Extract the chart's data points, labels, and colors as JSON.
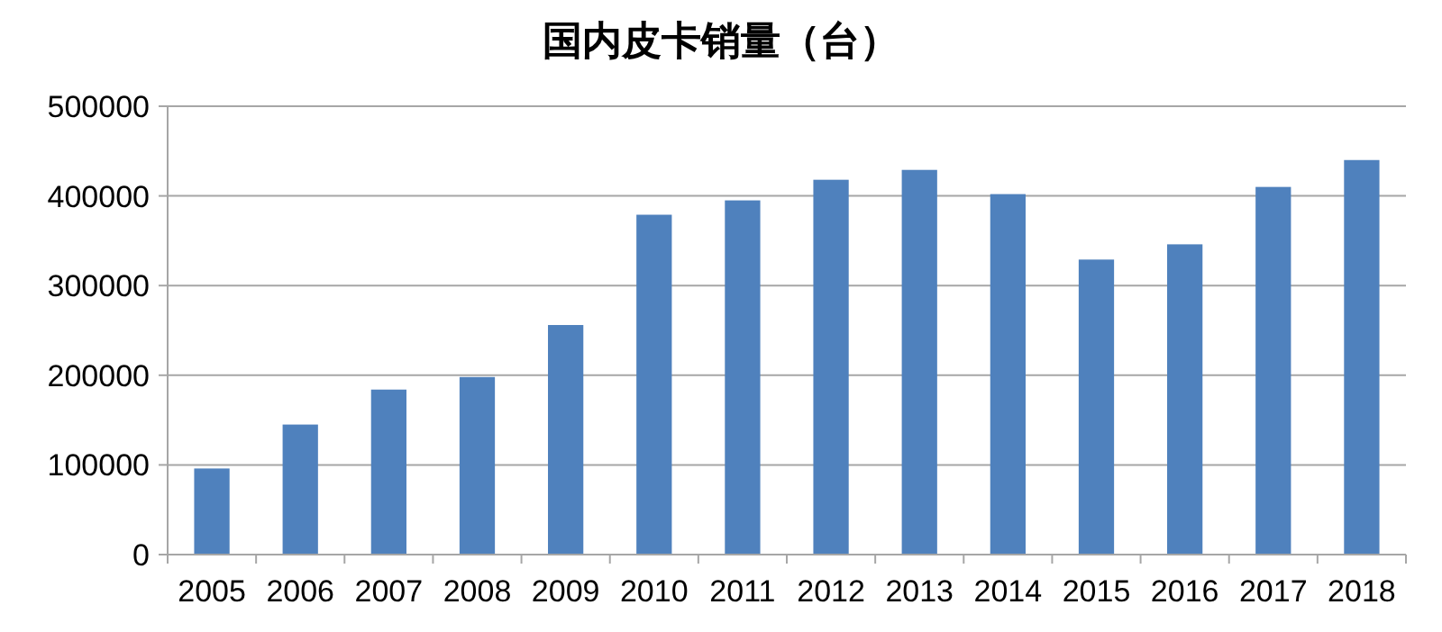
{
  "chart_data": {
    "type": "bar",
    "title": "国内皮卡销量（台）",
    "categories": [
      "2005",
      "2006",
      "2007",
      "2008",
      "2009",
      "2010",
      "2011",
      "2012",
      "2013",
      "2014",
      "2015",
      "2016",
      "2017",
      "2018"
    ],
    "values": [
      96000,
      145000,
      184000,
      198000,
      256000,
      379000,
      395000,
      418000,
      429000,
      402000,
      329000,
      346000,
      410000,
      440000
    ],
    "color": "#4f81bd",
    "ylim": [
      0,
      500000
    ],
    "yticks": [
      0,
      100000,
      200000,
      300000,
      400000,
      500000
    ],
    "grid": "y"
  }
}
